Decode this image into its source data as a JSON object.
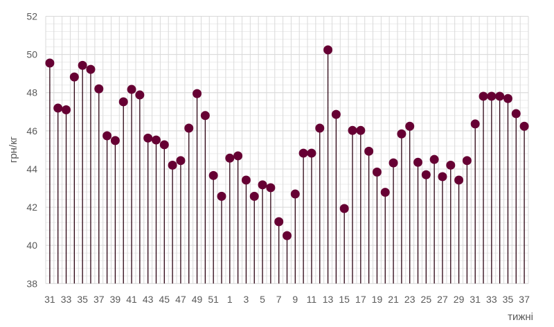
{
  "chart_data": {
    "type": "scatter",
    "style": "stem (lollipop)",
    "xlabel": "тижні",
    "ylabel": "грн/кг",
    "ylim": [
      38,
      52
    ],
    "yticks": [
      38,
      40,
      42,
      44,
      46,
      48,
      50,
      52
    ],
    "grid": true,
    "marker_color": "#660033",
    "stem_color": "#2a0010",
    "categories": [
      31,
      32,
      33,
      34,
      35,
      36,
      37,
      38,
      39,
      40,
      41,
      42,
      43,
      44,
      45,
      46,
      47,
      48,
      49,
      50,
      51,
      52,
      1,
      2,
      3,
      4,
      5,
      6,
      7,
      8,
      9,
      10,
      11,
      12,
      13,
      14,
      15,
      16,
      17,
      18,
      19,
      20,
      21,
      22,
      23,
      24,
      25,
      26,
      27,
      28,
      29,
      30,
      31,
      32,
      33,
      34,
      35,
      36,
      37
    ],
    "xtick_labels": [
      "31",
      "",
      "33",
      "",
      "35",
      "",
      "37",
      "",
      "39",
      "",
      "41",
      "",
      "43",
      "",
      "45",
      "",
      "47",
      "",
      "49",
      "",
      "51",
      "",
      "1",
      "",
      "3",
      "",
      "5",
      "",
      "7",
      "",
      "9",
      "",
      "11",
      "",
      "13",
      "",
      "15",
      "",
      "17",
      "",
      "19",
      "",
      "21",
      "",
      "23",
      "",
      "25",
      "",
      "27",
      "",
      "29",
      "",
      "31",
      "",
      "33",
      "",
      "35",
      "",
      "37"
    ],
    "values": [
      49.55,
      47.19,
      47.1,
      48.82,
      49.43,
      49.22,
      48.2,
      45.74,
      45.49,
      47.52,
      48.17,
      47.88,
      45.62,
      45.52,
      45.27,
      44.2,
      44.44,
      46.14,
      47.95,
      46.8,
      43.66,
      42.57,
      44.57,
      44.69,
      43.42,
      42.57,
      43.17,
      43.02,
      41.24,
      40.51,
      42.69,
      44.83,
      44.83,
      46.14,
      50.24,
      46.86,
      41.93,
      46.02,
      46.02,
      44.93,
      43.84,
      42.78,
      44.32,
      45.84,
      46.24,
      44.35,
      43.7,
      44.5,
      43.6,
      44.2,
      43.42,
      44.44,
      46.36,
      47.81,
      47.81,
      47.81,
      47.69,
      46.9,
      46.24
    ]
  }
}
